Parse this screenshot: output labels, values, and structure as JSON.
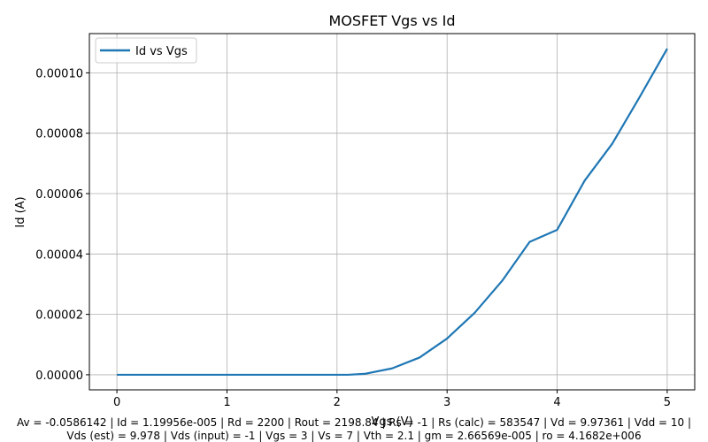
{
  "chart_data": {
    "type": "line",
    "title": "MOSFET Vgs vs Id",
    "xlabel": "Vgs (V)",
    "ylabel": "Id (A)",
    "xlim": [
      -0.25,
      5.25
    ],
    "ylim": [
      -5e-06,
      0.000113
    ],
    "x_ticks": [
      0,
      1,
      2,
      3,
      4,
      5
    ],
    "y_ticks": [
      0.0,
      2e-05,
      4e-05,
      6e-05,
      8e-05,
      0.0001
    ],
    "x_tick_labels": [
      "0",
      "1",
      "2",
      "3",
      "4",
      "5"
    ],
    "y_tick_labels": [
      "0.00000",
      "0.00002",
      "0.00004",
      "0.00006",
      "0.00008",
      "0.00010"
    ],
    "grid": true,
    "legend_position": "top-left",
    "series": [
      {
        "name": "Id vs Vgs",
        "color": "#1f77b4",
        "x": [
          0,
          0.5,
          1.0,
          1.5,
          2.0,
          2.1,
          2.25,
          2.5,
          2.75,
          3.0,
          3.25,
          3.5,
          3.75,
          4.0,
          4.25,
          4.5,
          4.75,
          5.0
        ],
        "y": [
          0,
          0,
          0,
          0,
          0,
          0,
          3e-07,
          2.1e-06,
          5.7e-06,
          1.2e-05,
          2.05e-05,
          3.11e-05,
          4.4e-05,
          4.8e-05,
          6.43e-05,
          7.65e-05,
          9.2e-05,
          0.000108
        ]
      }
    ],
    "footer": {
      "line1": "Av = -0.0586142 | Id = 1.19956e-005 | Rd = 2200 | Rout = 2198.84 | Rs = -1 | Rs (calc) = 583547 | Vd = 9.97361 | Vdd = 10 |",
      "line2": "Vds (est) = 9.978 | Vds (input) = -1 | Vgs = 3 | Vs = 7 | Vth = 2.1 | gm = 2.66569e-005 | ro = 4.1682e+006"
    }
  }
}
